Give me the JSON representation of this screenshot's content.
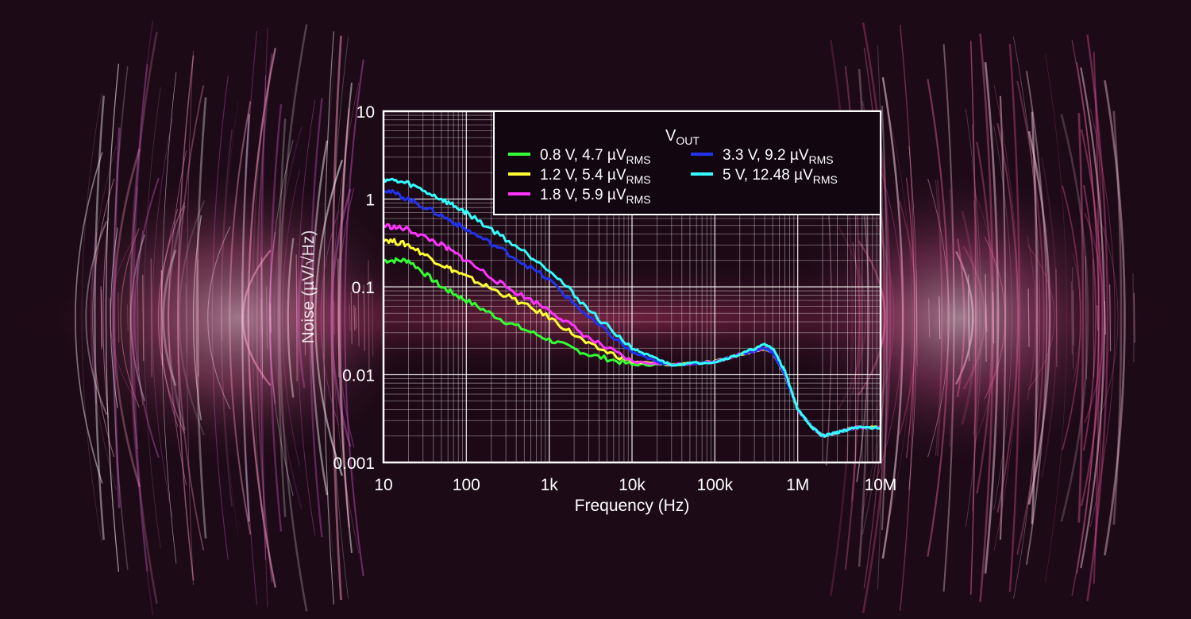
{
  "chart_data": {
    "type": "line",
    "xscale": "log",
    "yscale": "log",
    "xlim": [
      10,
      10000000
    ],
    "ylim": [
      0.001,
      10
    ],
    "xlabel": "Frequency (Hz)",
    "ylabel": "Noise (µV/√Hz)",
    "xticks": [
      "10",
      "100",
      "1k",
      "10k",
      "100k",
      "1M",
      "10M"
    ],
    "yticks": [
      "0.001",
      "0.01",
      "0.1",
      "1",
      "10"
    ],
    "grid": true,
    "legend": {
      "title_main": "V",
      "title_sub": "OUT",
      "placement": "top-right"
    },
    "series": [
      {
        "label_main": "0.8 V, 4.7 µV",
        "label_sub": "RMS",
        "color": "#33ff33",
        "points": [
          [
            10,
            0.2
          ],
          [
            20,
            0.2
          ],
          [
            50,
            0.1
          ],
          [
            100,
            0.07
          ],
          [
            300,
            0.04
          ],
          [
            1000,
            0.025
          ],
          [
            3000,
            0.017
          ],
          [
            10000,
            0.013
          ],
          [
            30000,
            0.013
          ],
          [
            100000,
            0.014
          ],
          [
            200000,
            0.017
          ],
          [
            400000,
            0.02
          ],
          [
            500000,
            0.018
          ],
          [
            700000,
            0.01
          ],
          [
            1000000,
            0.004
          ],
          [
            1500000,
            0.0025
          ],
          [
            2000000,
            0.002
          ],
          [
            3000000,
            0.0022
          ],
          [
            5000000,
            0.0025
          ],
          [
            10000000,
            0.0025
          ]
        ]
      },
      {
        "label_main": "1.2 V, 5.4 µV",
        "label_sub": "RMS",
        "color": "#ffff33",
        "points": [
          [
            10,
            0.35
          ],
          [
            20,
            0.3
          ],
          [
            50,
            0.18
          ],
          [
            100,
            0.13
          ],
          [
            300,
            0.08
          ],
          [
            1000,
            0.045
          ],
          [
            3000,
            0.022
          ],
          [
            10000,
            0.014
          ],
          [
            30000,
            0.013
          ],
          [
            100000,
            0.014
          ],
          [
            200000,
            0.017
          ],
          [
            400000,
            0.02
          ],
          [
            500000,
            0.018
          ],
          [
            700000,
            0.01
          ],
          [
            1000000,
            0.004
          ],
          [
            1500000,
            0.0025
          ],
          [
            2000000,
            0.002
          ],
          [
            3000000,
            0.0022
          ],
          [
            5000000,
            0.0025
          ],
          [
            10000000,
            0.0025
          ]
        ]
      },
      {
        "label_main": "1.8 V, 5.9 µV",
        "label_sub": "RMS",
        "color": "#ff33ff",
        "points": [
          [
            10,
            0.5
          ],
          [
            20,
            0.45
          ],
          [
            50,
            0.3
          ],
          [
            100,
            0.2
          ],
          [
            300,
            0.1
          ],
          [
            1000,
            0.055
          ],
          [
            3000,
            0.026
          ],
          [
            10000,
            0.014
          ],
          [
            30000,
            0.013
          ],
          [
            100000,
            0.014
          ],
          [
            200000,
            0.017
          ],
          [
            400000,
            0.02
          ],
          [
            500000,
            0.018
          ],
          [
            700000,
            0.01
          ],
          [
            1000000,
            0.004
          ],
          [
            1500000,
            0.0025
          ],
          [
            2000000,
            0.002
          ],
          [
            3000000,
            0.0022
          ],
          [
            5000000,
            0.0025
          ],
          [
            10000000,
            0.0025
          ]
        ]
      },
      {
        "label_main": "3.3 V, 9.2 µV",
        "label_sub": "RMS",
        "color": "#2233ee",
        "points": [
          [
            10,
            1.3
          ],
          [
            20,
            1.0
          ],
          [
            50,
            0.65
          ],
          [
            100,
            0.45
          ],
          [
            300,
            0.25
          ],
          [
            1000,
            0.12
          ],
          [
            3000,
            0.045
          ],
          [
            10000,
            0.018
          ],
          [
            20000,
            0.014
          ],
          [
            30000,
            0.013
          ],
          [
            100000,
            0.014
          ],
          [
            200000,
            0.017
          ],
          [
            400000,
            0.02
          ],
          [
            500000,
            0.018
          ],
          [
            700000,
            0.01
          ],
          [
            1000000,
            0.004
          ],
          [
            1500000,
            0.0025
          ],
          [
            2000000,
            0.002
          ],
          [
            3000000,
            0.0022
          ],
          [
            5000000,
            0.0025
          ],
          [
            10000000,
            0.0025
          ]
        ]
      },
      {
        "label_main": "5 V, 12.48 µV",
        "label_sub": "RMS",
        "color": "#33ffff",
        "points": [
          [
            10,
            1.7
          ],
          [
            20,
            1.5
          ],
          [
            50,
            1.0
          ],
          [
            100,
            0.7
          ],
          [
            300,
            0.35
          ],
          [
            1000,
            0.16
          ],
          [
            3000,
            0.055
          ],
          [
            10000,
            0.02
          ],
          [
            20000,
            0.015
          ],
          [
            30000,
            0.013
          ],
          [
            100000,
            0.014
          ],
          [
            200000,
            0.017
          ],
          [
            400000,
            0.022
          ],
          [
            500000,
            0.02
          ],
          [
            700000,
            0.011
          ],
          [
            1000000,
            0.004
          ],
          [
            1500000,
            0.0025
          ],
          [
            2000000,
            0.002
          ],
          [
            3000000,
            0.0022
          ],
          [
            5000000,
            0.0025
          ],
          [
            10000000,
            0.0025
          ]
        ]
      }
    ]
  }
}
